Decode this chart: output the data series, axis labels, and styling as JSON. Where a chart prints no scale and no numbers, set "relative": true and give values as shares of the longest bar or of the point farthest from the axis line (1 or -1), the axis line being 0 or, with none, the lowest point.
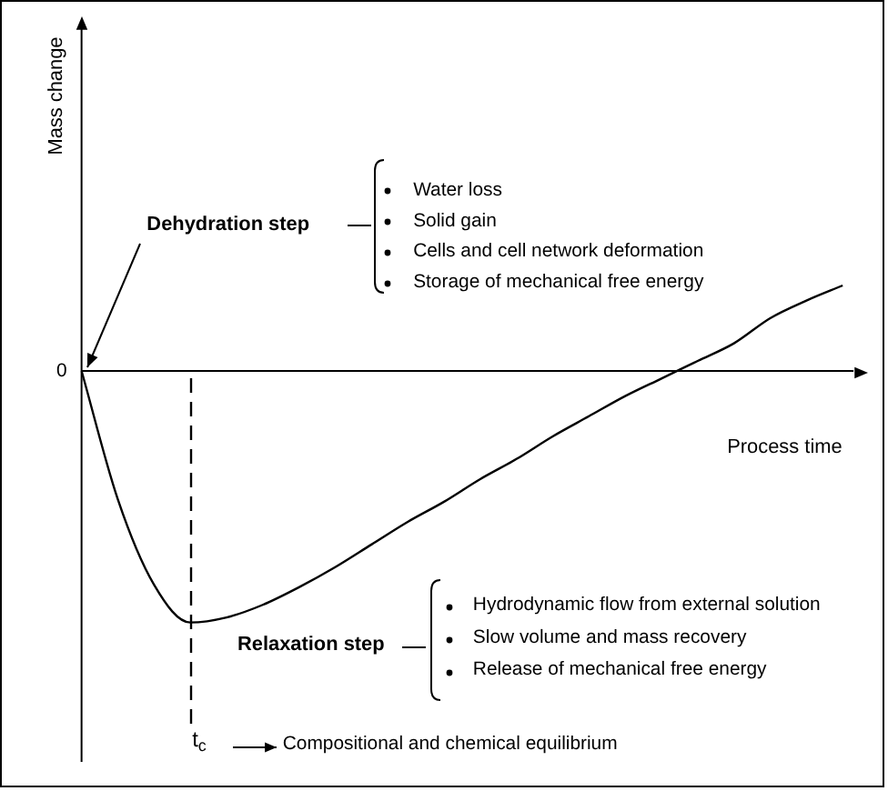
{
  "chart_data": {
    "type": "line",
    "relative": true,
    "xlabel": "Process time",
    "marker": "none",
    "categories": [
      null,
      null,
      null,
      null,
      null,
      null,
      null,
      null,
      null,
      null,
      null,
      null,
      null,
      null,
      null,
      null,
      null,
      null,
      null,
      null,
      null,
      null
    ],
    "series": [
      {
        "color": "#000000",
        "values": [
          0,
          -0.51,
          -0.85,
          -1,
          -0.98,
          -0.93,
          -0.86,
          -0.78,
          -0.69,
          -0.6,
          -0.52,
          -0.43,
          -0.35,
          -0.26,
          -0.18,
          -0.1,
          -0.03,
          0.04,
          0.11,
          0.21,
          0.28,
          0.34
        ]
      }
    ],
    "annotations": [
      "Mass change",
      "t$_{c}$",
      "0",
      "Dehydration step",
      "Water loss",
      "Solid gain",
      "Cells and cell network deformation",
      "Storage of mechanical free energy",
      "Relaxation step",
      "Hydrodynamic flow from external solution",
      "Slow volume and mass recovery",
      "Release of mechanical free energy",
      "Compositional and chemical equilibrium"
    ]
  }
}
